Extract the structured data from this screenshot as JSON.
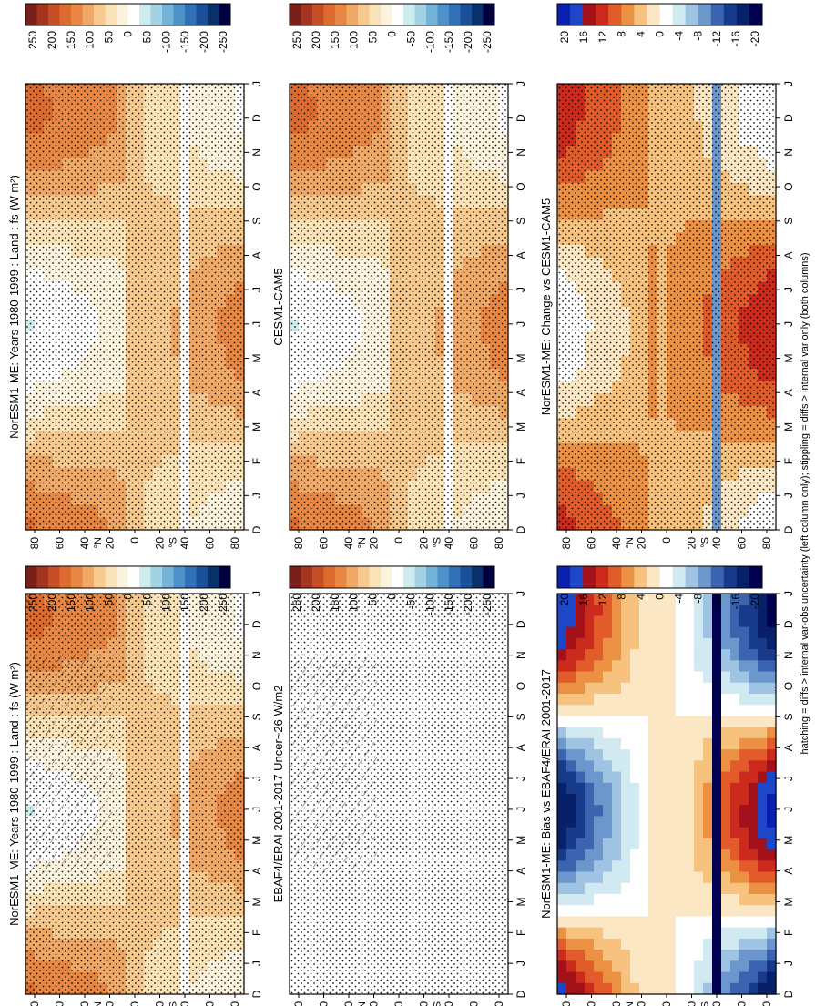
{
  "footer": "hatching = diffs > internal var-obs uncertainty (left column only); stippling = diffs > internal var only (both columns)",
  "colors": {
    "flux_scale": [
      "#000040",
      "#08306b",
      "#1a4f9a",
      "#2f70b8",
      "#4c91c8",
      "#74b3d8",
      "#a3d3e3",
      "#cdecee",
      "#ffffff",
      "#fbf3de",
      "#fbe3b8",
      "#f6c98e",
      "#f0a866",
      "#e88744",
      "#dd6a2e",
      "#c74d25",
      "#a3341d",
      "#7a1f17"
    ],
    "diff_scale": [
      "#000050",
      "#06206a",
      "#173a8a",
      "#3b64b0",
      "#6c97cc",
      "#9fc4e3",
      "#d1e9f1",
      "#ffffff",
      "#fbe7c4",
      "#f6c27e",
      "#ec9144",
      "#e15c2a",
      "#cc2a1c",
      "#a3111a",
      "#1e46c8",
      "#0a20b0"
    ]
  },
  "chart_data": [
    {
      "id": "model_1980_1999_left",
      "type": "heatmap",
      "title": "NorESM1-ME: Years 1980-1999 : Land : fs (W m²)",
      "x_ticks": [
        "D",
        "J",
        "F",
        "M",
        "A",
        "M",
        "J",
        "J",
        "A",
        "S",
        "O",
        "N",
        "D",
        "J"
      ],
      "y_ticks": [
        "80",
        "60",
        "40",
        "20",
        "0",
        "20",
        "40",
        "60",
        "80"
      ],
      "y_tick_marks": [
        "°N",
        "°S"
      ],
      "colorbar_ticks": [
        "250",
        "200",
        "150",
        "100",
        "50",
        "0",
        "-50",
        "-100",
        "-150",
        "-200",
        "-250"
      ],
      "hatching": "yes",
      "stippling": "yes"
    },
    {
      "id": "model_1980_1999_right",
      "type": "heatmap",
      "title": "NorESM1-ME: Years 1980-1999 : Land : fs (W m²)",
      "x_ticks": [
        "D",
        "J",
        "F",
        "M",
        "A",
        "M",
        "J",
        "J",
        "A",
        "S",
        "O",
        "N",
        "D",
        "J"
      ],
      "y_ticks": [
        "80",
        "60",
        "40",
        "20",
        "0",
        "20",
        "40",
        "60",
        "80"
      ],
      "y_tick_marks": [
        "°N",
        "°S"
      ],
      "colorbar_ticks": [
        "250",
        "200",
        "150",
        "100",
        "50",
        "0",
        "-50",
        "-100",
        "-150",
        "-200",
        "-250"
      ],
      "stippling": "yes"
    },
    {
      "id": "obs",
      "type": "heatmap",
      "title": "EBAF4/ERAI 2001-2017 Uncer~26 W/m2",
      "x_ticks": [
        "D",
        "J",
        "F",
        "M",
        "A",
        "M",
        "J",
        "J",
        "A",
        "S",
        "O",
        "N",
        "D",
        "J"
      ],
      "y_ticks": [
        "80",
        "60",
        "40",
        "20",
        "0",
        "20",
        "40",
        "60",
        "80"
      ],
      "y_tick_marks": [
        "°N",
        "°S"
      ],
      "colorbar_ticks": [
        "250",
        "200",
        "150",
        "100",
        "50",
        "0",
        "-50",
        "-100",
        "-150",
        "-200",
        "-250"
      ]
    },
    {
      "id": "cesm",
      "type": "heatmap",
      "title": "CESM1-CAM5",
      "x_ticks": [
        "D",
        "J",
        "F",
        "M",
        "A",
        "M",
        "J",
        "J",
        "A",
        "S",
        "O",
        "N",
        "D",
        "J"
      ],
      "y_ticks": [
        "80",
        "60",
        "40",
        "20",
        "0",
        "20",
        "40",
        "60",
        "80"
      ],
      "y_tick_marks": [
        "°N",
        "°S"
      ],
      "colorbar_ticks": [
        "250",
        "200",
        "150",
        "100",
        "50",
        "0",
        "-50",
        "-100",
        "-150",
        "-200",
        "-250"
      ]
    },
    {
      "id": "bias",
      "type": "heatmap",
      "title": "NorESM1-ME: Bias vs EBAF4/ERAI 2001-2017",
      "x_ticks": [
        "D",
        "J",
        "F",
        "M",
        "A",
        "M",
        "J",
        "J",
        "A",
        "S",
        "O",
        "N",
        "D",
        "J"
      ],
      "y_ticks": [
        "80",
        "60",
        "40",
        "20",
        "0",
        "20",
        "40",
        "60",
        "80"
      ],
      "y_tick_marks": [
        "°N",
        "°S"
      ],
      "colorbar_ticks": [
        "20",
        "16",
        "12",
        "8",
        "4",
        "0",
        "-4",
        "-8",
        "-12",
        "-16",
        "-20"
      ]
    },
    {
      "id": "change",
      "type": "heatmap",
      "title": "NorESM1-ME: Change vs CESM1-CAM5",
      "x_ticks": [
        "D",
        "J",
        "F",
        "M",
        "A",
        "M",
        "J",
        "J",
        "A",
        "S",
        "O",
        "N",
        "D",
        "J"
      ],
      "y_ticks": [
        "80",
        "60",
        "40",
        "20",
        "0",
        "20",
        "40",
        "60",
        "80"
      ],
      "y_tick_marks": [
        "°N",
        "°S"
      ],
      "colorbar_ticks": [
        "20",
        "16",
        "12",
        "8",
        "4",
        "0",
        "-4",
        "-8",
        "-12",
        "-16",
        "-20"
      ]
    }
  ]
}
